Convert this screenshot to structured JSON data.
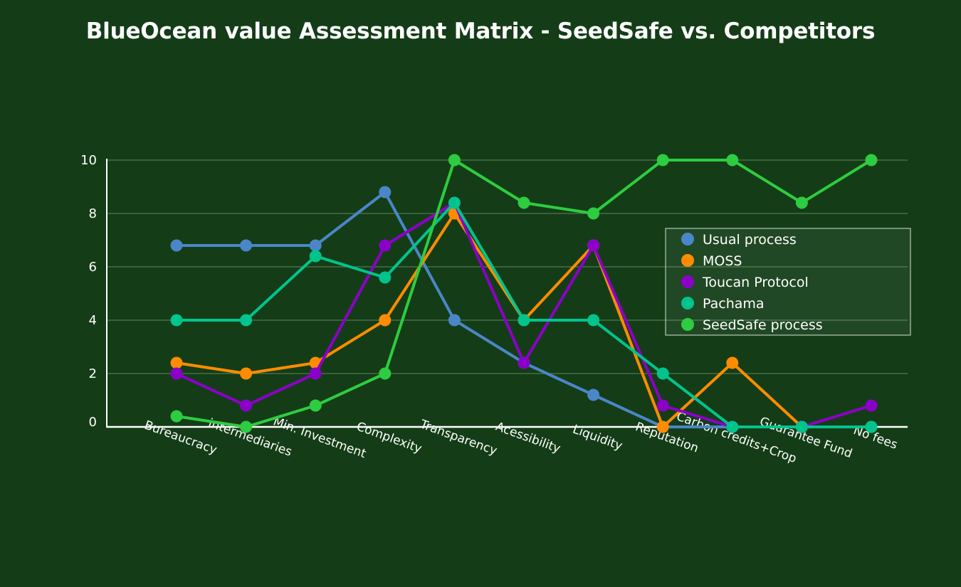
{
  "chart_data": {
    "type": "line",
    "title": "BlueOcean value Assessment Matrix - SeedSafe vs. Competitors",
    "xlabel": "",
    "ylabel": "",
    "ylim": [
      0,
      10
    ],
    "yticks": [
      0,
      2,
      4,
      6,
      8,
      10
    ],
    "grid": true,
    "legend_position": "right",
    "categories": [
      "Bureaucracy",
      "intermediaries",
      "Min. Investment",
      "Complexity",
      "Transparency",
      "Acessibility",
      "Liquidity",
      "Reputation",
      "Carbon credits+Crop",
      "Guarantee Fund",
      "No fees"
    ],
    "series": [
      {
        "name": "Usual process",
        "color": "#4a86c8",
        "values": [
          6.8,
          6.8,
          6.8,
          8.8,
          4.0,
          2.4,
          1.2,
          0.0,
          0.0,
          0.0,
          0.0
        ]
      },
      {
        "name": "MOSS",
        "color": "#ff8c00",
        "values": [
          2.4,
          2.0,
          2.4,
          4.0,
          8.0,
          4.0,
          6.8,
          0.0,
          2.4,
          0.0,
          0.0
        ]
      },
      {
        "name": "Toucan Protocol",
        "color": "#8b00c9",
        "values": [
          2.0,
          0.8,
          2.0,
          6.8,
          8.4,
          2.4,
          6.8,
          0.8,
          0.0,
          0.0,
          0.8
        ]
      },
      {
        "name": "Pachama",
        "color": "#00c48c",
        "values": [
          4.0,
          4.0,
          6.4,
          5.6,
          8.4,
          4.0,
          4.0,
          2.0,
          0.0,
          0.0,
          0.0
        ]
      },
      {
        "name": "SeedSafe process",
        "color": "#2ecc40",
        "values": [
          0.4,
          0.0,
          0.8,
          2.0,
          10.0,
          8.4,
          8.0,
          10.0,
          10.0,
          8.4,
          10.0
        ]
      }
    ]
  }
}
